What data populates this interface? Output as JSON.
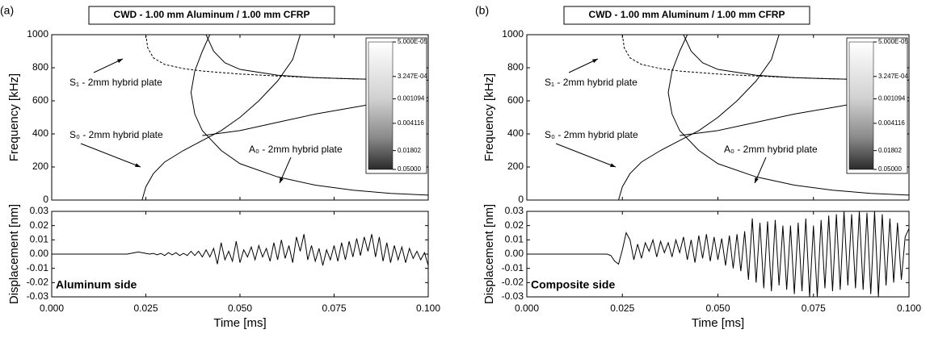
{
  "chart_data": [
    {
      "type": "spectrogram",
      "panel_label": "(a)",
      "title": "CWD - 1.00 mm Aluminum / 1.00 mm CFRP",
      "ylabel": "Frequency [kHz]",
      "xlim": [
        0,
        0.1
      ],
      "xticks": [
        0,
        0.025,
        0.05,
        0.075,
        0.1
      ],
      "ylim": [
        0,
        1000
      ],
      "yticks": [
        0,
        200,
        400,
        600,
        800,
        1000
      ],
      "series": [
        {
          "color": "#000000",
          "dashed": true,
          "x": [
            0.025,
            0.0255,
            0.027,
            0.03,
            0.035,
            0.04,
            0.05,
            0.06,
            0.07,
            0.08,
            0.09,
            0.1
          ],
          "values": [
            1000,
            920,
            860,
            820,
            795,
            780,
            762,
            750,
            740,
            733,
            728,
            724
          ]
        },
        {
          "color": "#000000",
          "dashed": false,
          "x": [
            0.041,
            0.043,
            0.046,
            0.05,
            0.06,
            0.07,
            0.08,
            0.09,
            0.1
          ],
          "values": [
            1000,
            900,
            830,
            790,
            755,
            740,
            733,
            728,
            725
          ]
        },
        {
          "color": "#000000",
          "dashed": false,
          "x": [
            0.024,
            0.025,
            0.027,
            0.03,
            0.035,
            0.04,
            0.045,
            0.05,
            0.055,
            0.06,
            0.064,
            0.066
          ],
          "values": [
            0,
            80,
            160,
            230,
            300,
            360,
            420,
            500,
            600,
            720,
            850,
            1000
          ]
        },
        {
          "color": "#000000",
          "dashed": false,
          "x": [
            0.042,
            0.04,
            0.038,
            0.037,
            0.038,
            0.04,
            0.045,
            0.05,
            0.06,
            0.07,
            0.08,
            0.09,
            0.1
          ],
          "values": [
            1000,
            900,
            780,
            650,
            520,
            420,
            300,
            220,
            140,
            90,
            60,
            40,
            30
          ]
        },
        {
          "color": "#000000",
          "dashed": false,
          "x": [
            0.04,
            0.05,
            0.06,
            0.07,
            0.08,
            0.09,
            0.1
          ],
          "values": [
            390,
            420,
            470,
            520,
            560,
            600,
            620
          ]
        }
      ],
      "annotations": [
        "S₁ - 2mm hybrid plate",
        "S₀ - 2mm hybrid plate",
        "A₀ - 2mm hybrid plate"
      ],
      "colorbar": {
        "scale": "log",
        "lim": [
          5e-05,
          0.05
        ],
        "ticks": [
          {
            "value": 5e-05,
            "label": "5.000E-05"
          },
          {
            "value": 0.0003247,
            "label": "3.247E-04"
          },
          0.001094,
          0.004116,
          0.01802,
          {
            "value": 0.05,
            "label": "0.05000"
          }
        ]
      }
    },
    {
      "type": "line",
      "xlabel": "Time [ms]",
      "ylabel": "Displacement [nm]",
      "inset_label": "Aluminum side",
      "xlim": [
        0,
        0.1
      ],
      "xticks": [
        {
          "value": 0,
          "label": "0.000"
        },
        0.025,
        {
          "value": 0.05,
          "label": "0.050"
        },
        0.075,
        {
          "value": 0.1,
          "label": "0.100"
        }
      ],
      "ylim": [
        -0.03,
        0.03
      ],
      "yticks": [
        -0.03,
        -0.02,
        -0.01,
        {
          "value": 0,
          "label": "0.00"
        },
        0.01,
        0.02,
        0.03
      ],
      "series": [
        {
          "color": "#000000",
          "dashed": false,
          "x": [
            0,
            0.001,
            0.002,
            0.003,
            0.004,
            0.005,
            0.006,
            0.007,
            0.008,
            0.009,
            0.01,
            0.011,
            0.012,
            0.013,
            0.014,
            0.015,
            0.016,
            0.017,
            0.018,
            0.019,
            0.02,
            0.021,
            0.022,
            0.023,
            0.024,
            0.025,
            0.026,
            0.027,
            0.028,
            0.029,
            0.03,
            0.031,
            0.032,
            0.033,
            0.034,
            0.035,
            0.036,
            0.037,
            0.038,
            0.039,
            0.04,
            0.041,
            0.042,
            0.043,
            0.044,
            0.045,
            0.046,
            0.047,
            0.048,
            0.049,
            0.05,
            0.051,
            0.052,
            0.053,
            0.054,
            0.055,
            0.056,
            0.057,
            0.058,
            0.059,
            0.06,
            0.061,
            0.062,
            0.063,
            0.064,
            0.065,
            0.066,
            0.067,
            0.068,
            0.069,
            0.07,
            0.071,
            0.072,
            0.073,
            0.074,
            0.075,
            0.076,
            0.077,
            0.078,
            0.079,
            0.08,
            0.081,
            0.082,
            0.083,
            0.084,
            0.085,
            0.086,
            0.087,
            0.088,
            0.089,
            0.09,
            0.091,
            0.092,
            0.093,
            0.094,
            0.095,
            0.096,
            0.097,
            0.098,
            0.099,
            0.1
          ],
          "values": [
            0,
            0,
            0,
            0,
            0,
            0,
            0,
            0,
            0,
            0,
            0,
            0,
            0,
            0,
            0,
            0,
            0,
            0,
            0,
            0,
            0,
            0.0005,
            0.001,
            0.0015,
            0.001,
            0.0005,
            0,
            0.0005,
            -0.0005,
            0.0005,
            -0.001,
            0.001,
            -0.0005,
            0.001,
            -0.001,
            0.0005,
            -0.001,
            0.002,
            -0.001,
            0.002,
            -0.002,
            0.003,
            -0.002,
            0.004,
            -0.007,
            0.008,
            -0.004,
            0.002,
            -0.005,
            0.009,
            -0.006,
            0.003,
            -0.002,
            0.005,
            -0.004,
            0.006,
            -0.002,
            0.004,
            -0.005,
            0.008,
            -0.004,
            0.01,
            -0.003,
            0.006,
            -0.006,
            0.012,
            0.002,
            0.014,
            -0.004,
            0.006,
            -0.005,
            0.004,
            -0.008,
            0.003,
            -0.004,
            0.006,
            -0.005,
            0.008,
            -0.004,
            0.009,
            -0.002,
            0.011,
            -0.001,
            0.012,
            0.002,
            0.014,
            -0.002,
            0.012,
            -0.005,
            0.008,
            -0.006,
            0.006,
            -0.004,
            0.005,
            -0.006,
            0.004,
            -0.003,
            0.002,
            -0.004,
            0.001,
            -0.008
          ]
        }
      ]
    },
    {
      "type": "spectrogram",
      "panel_label": "(b)",
      "title": "CWD - 1.00 mm Aluminum / 1.00 mm CFRP",
      "ylabel": "Frequency [kHz]",
      "xlim": [
        0,
        0.1
      ],
      "xticks": [
        0,
        0.025,
        0.05,
        0.075,
        0.1
      ],
      "ylim": [
        0,
        1000
      ],
      "yticks": [
        0,
        200,
        400,
        600,
        800,
        1000
      ],
      "series": [
        {
          "color": "#000000",
          "dashed": true,
          "x": [
            0.025,
            0.0255,
            0.027,
            0.03,
            0.035,
            0.04,
            0.05,
            0.06,
            0.07,
            0.08,
            0.09,
            0.1
          ],
          "values": [
            1000,
            920,
            860,
            820,
            795,
            780,
            762,
            750,
            740,
            733,
            728,
            724
          ]
        },
        {
          "color": "#000000",
          "dashed": false,
          "x": [
            0.041,
            0.043,
            0.046,
            0.05,
            0.06,
            0.07,
            0.08,
            0.09,
            0.1
          ],
          "values": [
            1000,
            900,
            830,
            790,
            755,
            740,
            733,
            728,
            725
          ]
        },
        {
          "color": "#000000",
          "dashed": false,
          "x": [
            0.024,
            0.025,
            0.027,
            0.03,
            0.035,
            0.04,
            0.045,
            0.05,
            0.055,
            0.06,
            0.064,
            0.066
          ],
          "values": [
            0,
            80,
            160,
            230,
            300,
            360,
            420,
            500,
            600,
            720,
            850,
            1000
          ]
        },
        {
          "color": "#000000",
          "dashed": false,
          "x": [
            0.042,
            0.04,
            0.038,
            0.037,
            0.038,
            0.04,
            0.045,
            0.05,
            0.06,
            0.07,
            0.08,
            0.09,
            0.1
          ],
          "values": [
            1000,
            900,
            780,
            650,
            520,
            420,
            300,
            220,
            140,
            90,
            60,
            40,
            30
          ]
        },
        {
          "color": "#000000",
          "dashed": false,
          "x": [
            0.04,
            0.05,
            0.06,
            0.07,
            0.08,
            0.09,
            0.1
          ],
          "values": [
            390,
            420,
            470,
            520,
            560,
            600,
            620
          ]
        }
      ],
      "annotations": [
        "S₁ - 2mm hybrid plate",
        "S₀ - 2mm hybrid plate",
        "A₀ - 2mm hybrid plate"
      ],
      "colorbar": {
        "scale": "log",
        "lim": [
          5e-05,
          0.05
        ],
        "ticks": [
          {
            "value": 5e-05,
            "label": "5.000E-05"
          },
          {
            "value": 0.0003247,
            "label": "3.247E-04"
          },
          0.001094,
          0.004116,
          0.01802,
          {
            "value": 0.05,
            "label": "0.05000"
          }
        ]
      }
    },
    {
      "type": "line",
      "xlabel": "Time [ms]",
      "ylabel": "Displacement [nm]",
      "inset_label": "Composite side",
      "xlim": [
        0,
        0.1
      ],
      "xticks": [
        {
          "value": 0,
          "label": "0.000"
        },
        0.025,
        {
          "value": 0.05,
          "label": "0.050"
        },
        0.075,
        {
          "value": 0.1,
          "label": "0.100"
        }
      ],
      "ylim": [
        -0.03,
        0.03
      ],
      "yticks": [
        -0.03,
        -0.02,
        -0.01,
        {
          "value": 0,
          "label": "0.00"
        },
        0.01,
        0.02,
        0.03
      ],
      "series": [
        {
          "color": "#000000",
          "dashed": false,
          "x": [
            0,
            0.001,
            0.002,
            0.003,
            0.004,
            0.005,
            0.006,
            0.007,
            0.008,
            0.009,
            0.01,
            0.011,
            0.012,
            0.013,
            0.014,
            0.015,
            0.016,
            0.017,
            0.018,
            0.019,
            0.02,
            0.021,
            0.022,
            0.023,
            0.024,
            0.025,
            0.026,
            0.027,
            0.028,
            0.029,
            0.03,
            0.031,
            0.032,
            0.033,
            0.034,
            0.035,
            0.036,
            0.037,
            0.038,
            0.039,
            0.04,
            0.041,
            0.042,
            0.043,
            0.044,
            0.045,
            0.046,
            0.047,
            0.048,
            0.049,
            0.05,
            0.051,
            0.052,
            0.053,
            0.054,
            0.055,
            0.056,
            0.057,
            0.058,
            0.059,
            0.06,
            0.061,
            0.062,
            0.063,
            0.064,
            0.065,
            0.066,
            0.067,
            0.068,
            0.069,
            0.07,
            0.071,
            0.072,
            0.073,
            0.074,
            0.075,
            0.076,
            0.077,
            0.078,
            0.079,
            0.08,
            0.081,
            0.082,
            0.083,
            0.084,
            0.085,
            0.086,
            0.087,
            0.088,
            0.089,
            0.09,
            0.091,
            0.092,
            0.093,
            0.094,
            0.095,
            0.096,
            0.097,
            0.098,
            0.099,
            0.1
          ],
          "values": [
            0,
            0,
            0,
            0,
            0,
            0,
            0,
            0,
            0,
            0,
            0,
            0,
            0,
            0,
            0,
            0,
            0,
            0,
            0,
            0,
            0,
            0,
            -0.001,
            -0.005,
            -0.007,
            0.003,
            0.015,
            0.01,
            -0.004,
            0.007,
            -0.003,
            0.008,
            0.002,
            0.01,
            -0.002,
            0.009,
            0.001,
            0.008,
            -0.002,
            0.01,
            0.001,
            0.012,
            -0.004,
            0.01,
            -0.006,
            0.013,
            -0.003,
            0.014,
            -0.005,
            0.012,
            -0.004,
            0.011,
            -0.008,
            0.013,
            -0.01,
            0.014,
            -0.012,
            0.016,
            -0.018,
            0.025,
            -0.02,
            0.022,
            -0.024,
            0.023,
            -0.026,
            0.024,
            -0.022,
            0.02,
            -0.025,
            0.02,
            -0.028,
            0.022,
            -0.026,
            0.025,
            -0.03,
            0.02,
            -0.03,
            0.024,
            -0.024,
            0.027,
            -0.026,
            0.028,
            -0.025,
            0.03,
            -0.022,
            0.028,
            -0.024,
            0.03,
            -0.025,
            0.029,
            -0.028,
            0.03,
            -0.03,
            0.028,
            -0.022,
            0.025,
            -0.02,
            0.022,
            -0.018,
            0.012,
            0.018
          ]
        }
      ]
    }
  ]
}
